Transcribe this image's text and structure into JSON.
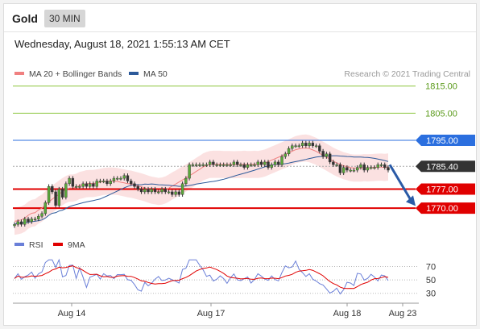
{
  "header": {
    "symbol": "Gold",
    "timeframe": "30 MIN",
    "datetime": "Wednesday, August 18, 2021 1:55:13 AM CET"
  },
  "legend": {
    "price": [
      {
        "label": "MA 20 + Bollinger Bands",
        "color": "#f08080"
      },
      {
        "label": "MA 50",
        "color": "#2c5a9a"
      }
    ],
    "rsi": [
      {
        "label": "RSI",
        "color": "#6a7fd8"
      },
      {
        "label": "9MA",
        "color": "#e00000"
      }
    ],
    "credit": "Research © 2021 Trading Central"
  },
  "chart_data": {
    "type": "candlestick",
    "price_range": [
      1762,
      1817
    ],
    "levels": [
      {
        "label": "1815.00",
        "value": 1815,
        "color": "#8dc63f",
        "kind": "resistance-target"
      },
      {
        "label": "1805.00",
        "value": 1805,
        "color": "#8dc63f",
        "kind": "resistance-target"
      },
      {
        "label": "1795.00",
        "value": 1795,
        "color": "#2b6fdf",
        "kind": "pivot"
      },
      {
        "label": "1785.40",
        "value": 1785.4,
        "color": "#333333",
        "kind": "last-price"
      },
      {
        "label": "1777.00",
        "value": 1777,
        "color": "#e00000",
        "kind": "support-target"
      },
      {
        "label": "1770.00",
        "value": 1770,
        "color": "#e00000",
        "kind": "support-target"
      }
    ],
    "close_series": [
      1764,
      1765,
      1764,
      1766,
      1765,
      1766,
      1766,
      1767,
      1768,
      1772,
      1778,
      1776,
      1771,
      1777,
      1774,
      1779,
      1781,
      1778,
      1778,
      1778,
      1779,
      1778,
      1779,
      1778,
      1780,
      1780,
      1780,
      1779,
      1780,
      1781,
      1781,
      1781,
      1782,
      1780,
      1779,
      1778,
      1777,
      1776,
      1777,
      1776,
      1777,
      1776,
      1776,
      1777,
      1776,
      1776,
      1775,
      1776,
      1775,
      1779,
      1781,
      1786,
      1786,
      1786,
      1786,
      1786,
      1786,
      1787,
      1786,
      1786,
      1786,
      1786,
      1786,
      1786,
      1787,
      1786,
      1786,
      1785,
      1786,
      1786,
      1786,
      1787,
      1786,
      1787,
      1785,
      1786,
      1787,
      1786,
      1789,
      1790,
      1792,
      1793,
      1793,
      1793,
      1794,
      1793,
      1794,
      1793,
      1793,
      1791,
      1789,
      1790,
      1787,
      1786,
      1786,
      1783,
      1785,
      1784,
      1784,
      1784,
      1785,
      1786,
      1784,
      1785,
      1785,
      1785,
      1786,
      1786,
      1785,
      1784
    ],
    "rsi": {
      "levels": [
        70,
        50,
        30
      ],
      "ylim": [
        20,
        85
      ]
    },
    "x_labels": [
      "Aug 14",
      "Aug 17",
      "Aug 18",
      "Aug 23"
    ],
    "forecast_arrow": "down"
  }
}
